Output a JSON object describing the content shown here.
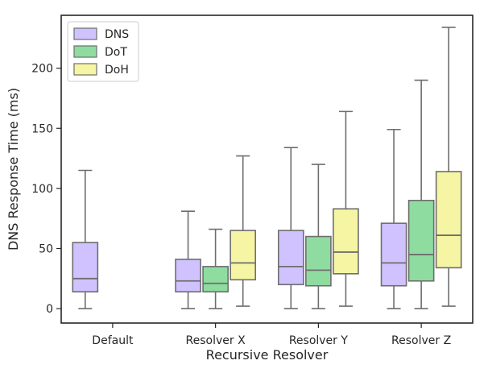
{
  "chart_data": {
    "type": "box",
    "xlabel": "Recursive Resolver",
    "ylabel": "DNS Response Time (ms)",
    "ylim": [
      -12,
      244
    ],
    "yticks": [
      0,
      50,
      100,
      150,
      200
    ],
    "categories": [
      "Default",
      "Resolver X",
      "Resolver Y",
      "Resolver Z"
    ],
    "legend_position": "top-left",
    "series": [
      {
        "name": "DNS",
        "color": "#d0c2ff",
        "boxes": [
          {
            "category": "Default",
            "whisker_low": 0,
            "q1": 14,
            "median": 25,
            "q3": 55,
            "whisker_high": 115
          },
          {
            "category": "Resolver X",
            "whisker_low": 0,
            "q1": 14,
            "median": 23,
            "q3": 41,
            "whisker_high": 81
          },
          {
            "category": "Resolver Y",
            "whisker_low": 0,
            "q1": 20,
            "median": 35,
            "q3": 65,
            "whisker_high": 134
          },
          {
            "category": "Resolver Z",
            "whisker_low": 0,
            "q1": 19,
            "median": 38,
            "q3": 71,
            "whisker_high": 149
          }
        ]
      },
      {
        "name": "DoT",
        "color": "#8fdca0",
        "boxes": [
          {
            "category": "Resolver X",
            "whisker_low": 0,
            "q1": 14,
            "median": 21,
            "q3": 35,
            "whisker_high": 66
          },
          {
            "category": "Resolver Y",
            "whisker_low": 0,
            "q1": 19,
            "median": 32,
            "q3": 60,
            "whisker_high": 120
          },
          {
            "category": "Resolver Z",
            "whisker_low": 0,
            "q1": 23,
            "median": 45,
            "q3": 90,
            "whisker_high": 190
          }
        ]
      },
      {
        "name": "DoH",
        "color": "#f5f5a3",
        "boxes": [
          {
            "category": "Resolver X",
            "whisker_low": 2,
            "q1": 24,
            "median": 38,
            "q3": 65,
            "whisker_high": 127
          },
          {
            "category": "Resolver Y",
            "whisker_low": 2,
            "q1": 29,
            "median": 47,
            "q3": 83,
            "whisker_high": 164
          },
          {
            "category": "Resolver Z",
            "whisker_low": 2,
            "q1": 34,
            "median": 61,
            "q3": 114,
            "whisker_high": 234
          }
        ]
      }
    ]
  }
}
